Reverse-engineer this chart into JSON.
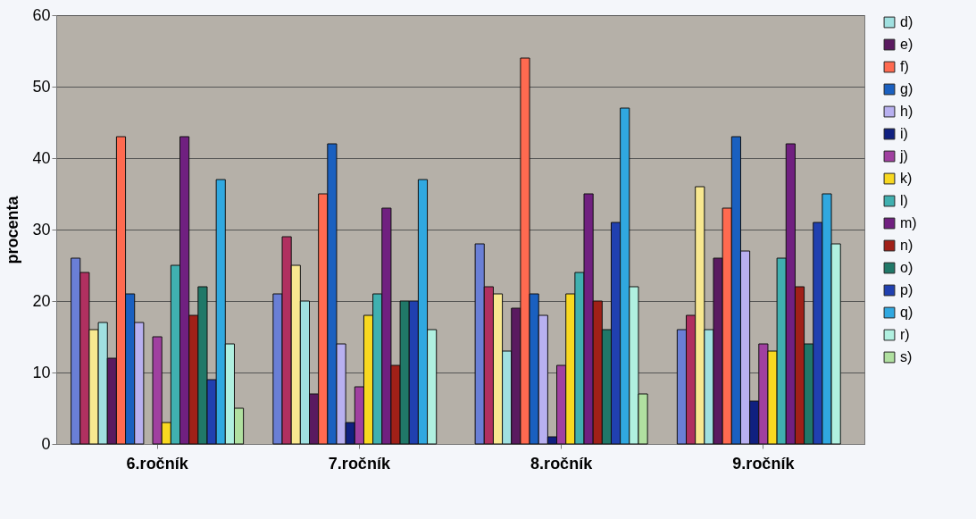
{
  "chart_data": {
    "type": "bar",
    "ylabel": "procenta",
    "categories": [
      "6.ročník",
      "7.ročník",
      "8.ročník",
      "9.ročník"
    ],
    "ylim": [
      0,
      60
    ],
    "yticks": [
      0,
      10,
      20,
      30,
      40,
      50,
      60
    ],
    "grid": "y",
    "legend": "right",
    "series": [
      {
        "color": "#6a7fd6",
        "values": [
          26,
          21,
          28,
          16
        ]
      },
      {
        "color": "#b03060",
        "values": [
          24,
          29,
          22,
          18
        ]
      },
      {
        "color": "#f8e890",
        "values": [
          16,
          25,
          21,
          36
        ]
      },
      {
        "name": "d)",
        "color": "#a0e0e0",
        "values": [
          17,
          20,
          13,
          16
        ]
      },
      {
        "name": "e)",
        "color": "#5a1a60",
        "values": [
          12,
          7,
          19,
          26
        ]
      },
      {
        "name": "f)",
        "color": "#ff6a50",
        "values": [
          43,
          35,
          54,
          33
        ]
      },
      {
        "name": "g)",
        "color": "#1a60c0",
        "values": [
          21,
          42,
          21,
          43
        ]
      },
      {
        "name": "h)",
        "color": "#b8b0f0",
        "values": [
          17,
          14,
          18,
          27
        ]
      },
      {
        "name": "i)",
        "color": "#102080",
        "values": [
          null,
          3,
          1,
          6
        ]
      },
      {
        "name": "j)",
        "color": "#a040a0",
        "values": [
          15,
          8,
          11,
          14
        ]
      },
      {
        "name": "k)",
        "color": "#f8d820",
        "values": [
          3,
          18,
          21,
          13
        ]
      },
      {
        "name": "l)",
        "color": "#40b0b0",
        "values": [
          25,
          21,
          24,
          26
        ]
      },
      {
        "name": "m)",
        "color": "#702080",
        "values": [
          43,
          33,
          35,
          42
        ]
      },
      {
        "name": "n)",
        "color": "#a02018",
        "values": [
          18,
          11,
          20,
          22
        ]
      },
      {
        "name": "o)",
        "color": "#207868",
        "values": [
          22,
          20,
          16,
          14
        ]
      },
      {
        "name": "p)",
        "color": "#2040b0",
        "values": [
          9,
          20,
          31,
          31
        ]
      },
      {
        "name": "q)",
        "color": "#30a8e0",
        "values": [
          37,
          37,
          47,
          35
        ]
      },
      {
        "name": "r)",
        "color": "#b0f0e0",
        "values": [
          14,
          16,
          22,
          28
        ]
      },
      {
        "name": "s)",
        "color": "#b0e0a0",
        "values": [
          5,
          null,
          7,
          null
        ]
      }
    ]
  }
}
